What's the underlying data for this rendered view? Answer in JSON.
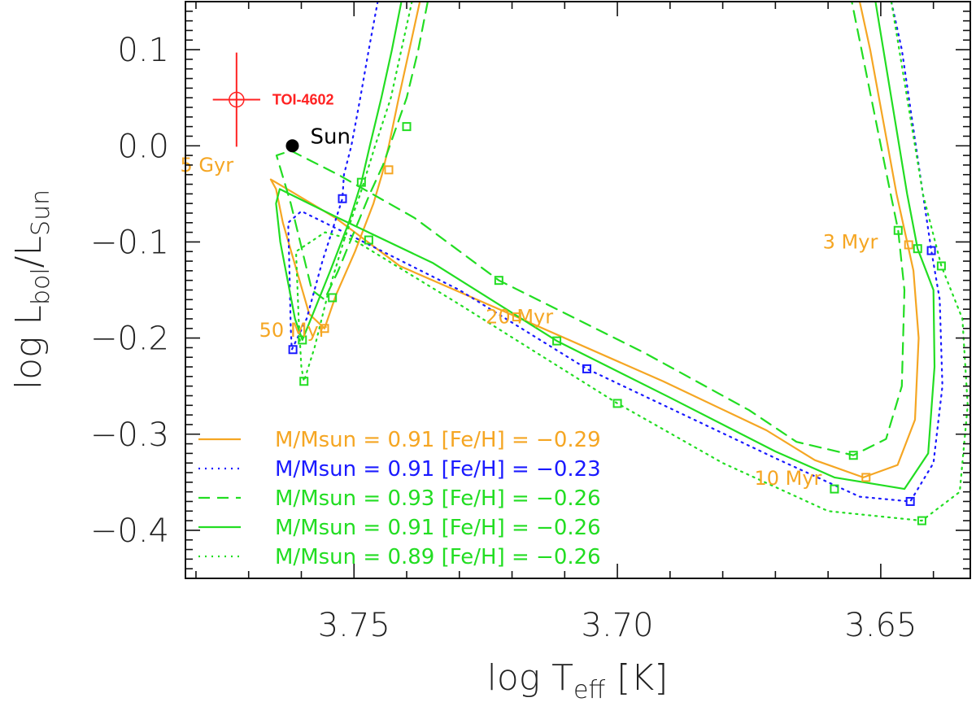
{
  "chart_data": {
    "type": "line",
    "title": "",
    "xlabel": {
      "prefix": "log T",
      "sub": "eff",
      "suffix": " [K]"
    },
    "ylabel": {
      "prefix": "log L",
      "sub1": "bol",
      "mid": "/L",
      "sub2": "Sun"
    },
    "xlim": [
      3.782,
      3.633
    ],
    "ylim": [
      -0.45,
      0.15
    ],
    "x_ticks": [
      {
        "value": 3.75,
        "label": "3.75"
      },
      {
        "value": 3.7,
        "label": "3.70"
      },
      {
        "value": 3.65,
        "label": "3.65"
      }
    ],
    "y_ticks": [
      {
        "value": 0.1,
        "label": "0.1"
      },
      {
        "value": 0.0,
        "label": "0.0"
      },
      {
        "value": -0.1,
        "label": "−0.1"
      },
      {
        "value": -0.2,
        "label": "−0.2"
      },
      {
        "value": -0.3,
        "label": "−0.3"
      },
      {
        "value": -0.4,
        "label": "−0.4"
      }
    ],
    "legend_placement": "bottom-left",
    "colors": {
      "orange": "#f5a623",
      "blue": "#1a1aff",
      "green": "#22dd22",
      "red": "#ff2222"
    },
    "series": [
      {
        "name": "M/Msun = 0.91 [Fe/H] = −0.29",
        "color": "#f5a623",
        "dash": "solid",
        "points": [
          [
            3.7375,
            0.15
          ],
          [
            3.7395,
            0.1
          ],
          [
            3.7415,
            0.05
          ],
          [
            3.7434,
            0.0
          ],
          [
            3.7447,
            -0.03
          ],
          [
            3.7463,
            -0.06
          ],
          [
            3.7498,
            -0.11
          ],
          [
            3.7534,
            -0.155
          ],
          [
            3.7556,
            -0.19
          ],
          [
            3.7585,
            -0.175
          ],
          [
            3.7635,
            -0.08
          ],
          [
            3.7648,
            -0.045
          ],
          [
            3.7658,
            -0.035
          ],
          [
            3.7636,
            -0.042
          ],
          [
            3.7535,
            -0.075
          ],
          [
            3.7413,
            -0.125
          ],
          [
            3.7191,
            -0.178
          ],
          [
            3.6913,
            -0.245
          ],
          [
            3.6717,
            -0.296
          ],
          [
            3.6625,
            -0.327
          ],
          [
            3.6533,
            -0.345
          ],
          [
            3.6468,
            -0.332
          ],
          [
            3.6435,
            -0.285
          ],
          [
            3.6428,
            -0.2
          ],
          [
            3.6438,
            -0.13
          ],
          [
            3.6452,
            -0.095
          ],
          [
            3.647,
            -0.05
          ],
          [
            3.652,
            0.1
          ],
          [
            3.654,
            0.15
          ]
        ],
        "markers": [
          [
            3.7434,
            -0.025
          ],
          [
            3.7556,
            -0.19
          ],
          [
            3.7191,
            -0.178
          ],
          [
            3.6528,
            -0.345
          ],
          [
            3.6447,
            -0.103
          ]
        ]
      },
      {
        "name": "M/Msun = 0.91 [Fe/H] = −0.23",
        "color": "#1a1aff",
        "dash": "dot",
        "points": [
          [
            3.7455,
            0.15
          ],
          [
            3.7472,
            0.1
          ],
          [
            3.7488,
            0.05
          ],
          [
            3.7505,
            0.0
          ],
          [
            3.7519,
            -0.03
          ],
          [
            3.7522,
            -0.055
          ],
          [
            3.756,
            -0.12
          ],
          [
            3.759,
            -0.18
          ],
          [
            3.7618,
            -0.212
          ],
          [
            3.762,
            -0.19
          ],
          [
            3.7623,
            -0.12
          ],
          [
            3.7625,
            -0.08
          ],
          [
            3.76,
            -0.068
          ],
          [
            3.75,
            -0.095
          ],
          [
            3.73,
            -0.15
          ],
          [
            3.7058,
            -0.232
          ],
          [
            3.67,
            -0.325
          ],
          [
            3.654,
            -0.365
          ],
          [
            3.6444,
            -0.37
          ],
          [
            3.64,
            -0.33
          ],
          [
            3.6383,
            -0.25
          ],
          [
            3.6388,
            -0.16
          ],
          [
            3.6404,
            -0.109
          ],
          [
            3.642,
            -0.05
          ],
          [
            3.646,
            0.1
          ],
          [
            3.648,
            0.15
          ]
        ],
        "markers": [
          [
            3.7522,
            -0.055
          ],
          [
            3.7616,
            -0.212
          ],
          [
            3.7058,
            -0.232
          ],
          [
            3.6444,
            -0.37
          ],
          [
            3.6404,
            -0.109
          ]
        ]
      },
      {
        "name": "M/Msun = 0.93 [Fe/H] = −0.26",
        "color": "#22dd22",
        "dash": "dash",
        "points": [
          [
            3.736,
            0.15
          ],
          [
            3.7378,
            0.1
          ],
          [
            3.74,
            0.05
          ],
          [
            3.7445,
            -0.02
          ],
          [
            3.747,
            -0.05
          ],
          [
            3.75,
            -0.09
          ],
          [
            3.753,
            -0.13
          ],
          [
            3.7556,
            -0.16
          ],
          [
            3.758,
            -0.15
          ],
          [
            3.762,
            -0.06
          ],
          [
            3.7647,
            -0.01
          ],
          [
            3.762,
            -0.005
          ],
          [
            3.753,
            -0.03
          ],
          [
            3.7385,
            -0.075
          ],
          [
            3.7225,
            -0.14
          ],
          [
            3.695,
            -0.215
          ],
          [
            3.675,
            -0.275
          ],
          [
            3.666,
            -0.308
          ],
          [
            3.6552,
            -0.322
          ],
          [
            3.649,
            -0.305
          ],
          [
            3.646,
            -0.25
          ],
          [
            3.6455,
            -0.15
          ],
          [
            3.6467,
            -0.088
          ],
          [
            3.6485,
            -0.04
          ],
          [
            3.6555,
            0.15
          ]
        ],
        "markers": [
          [
            3.74,
            0.02
          ],
          [
            3.7541,
            -0.158
          ],
          [
            3.7225,
            -0.14
          ],
          [
            3.6552,
            -0.322
          ],
          [
            3.6467,
            -0.088
          ]
        ]
      },
      {
        "name": "M/Msun = 0.91 [Fe/H] = −0.26",
        "color": "#22dd22",
        "dash": "solid",
        "points": [
          [
            3.741,
            0.15
          ],
          [
            3.7428,
            0.1
          ],
          [
            3.7448,
            0.05
          ],
          [
            3.747,
            0.0
          ],
          [
            3.7486,
            -0.038
          ],
          [
            3.751,
            -0.08
          ],
          [
            3.7545,
            -0.13
          ],
          [
            3.7578,
            -0.175
          ],
          [
            3.7598,
            -0.202
          ],
          [
            3.7612,
            -0.18
          ],
          [
            3.764,
            -0.1
          ],
          [
            3.7648,
            -0.06
          ],
          [
            3.7641,
            -0.045
          ],
          [
            3.753,
            -0.075
          ],
          [
            3.735,
            -0.122
          ],
          [
            3.7115,
            -0.203
          ],
          [
            3.69,
            -0.262
          ],
          [
            3.67,
            -0.318
          ],
          [
            3.6588,
            -0.345
          ],
          [
            3.6455,
            -0.357
          ],
          [
            3.641,
            -0.32
          ],
          [
            3.6398,
            -0.23
          ],
          [
            3.64,
            -0.15
          ],
          [
            3.643,
            -0.107
          ],
          [
            3.645,
            -0.05
          ],
          [
            3.651,
            0.15
          ]
        ],
        "markers": [
          [
            3.7486,
            -0.038
          ],
          [
            3.7598,
            -0.202
          ],
          [
            3.7115,
            -0.203
          ],
          [
            3.6588,
            -0.357
          ],
          [
            3.643,
            -0.107
          ]
        ]
      },
      {
        "name": "M/Msun = 0.89 [Fe/H] = −0.26",
        "color": "#22dd22",
        "dash": "dot",
        "points": [
          [
            3.739,
            0.15
          ],
          [
            3.741,
            0.1
          ],
          [
            3.743,
            0.05
          ],
          [
            3.746,
            0.0
          ],
          [
            3.7488,
            -0.05
          ],
          [
            3.752,
            -0.1
          ],
          [
            3.755,
            -0.155
          ],
          [
            3.7575,
            -0.21
          ],
          [
            3.7595,
            -0.245
          ],
          [
            3.76,
            -0.23
          ],
          [
            3.7605,
            -0.18
          ],
          [
            3.761,
            -0.11
          ],
          [
            3.7555,
            -0.09
          ],
          [
            3.75,
            -0.098
          ],
          [
            3.73,
            -0.165
          ],
          [
            3.7,
            -0.268
          ],
          [
            3.68,
            -0.33
          ],
          [
            3.66,
            -0.38
          ],
          [
            3.6422,
            -0.39
          ],
          [
            3.635,
            -0.36
          ],
          [
            3.6335,
            -0.27
          ],
          [
            3.6345,
            -0.18
          ],
          [
            3.6385,
            -0.125
          ],
          [
            3.642,
            -0.05
          ],
          [
            3.648,
            0.15
          ]
        ],
        "markers": [
          [
            3.7472,
            -0.098
          ],
          [
            3.7595,
            -0.245
          ],
          [
            3.7,
            -0.268
          ],
          [
            3.6422,
            -0.39
          ],
          [
            3.6385,
            -0.125
          ]
        ]
      }
    ],
    "points": [
      {
        "name": "TOI-4602",
        "x": 3.7723,
        "y": 0.048,
        "xerr": 0.0045,
        "yerr": 0.049,
        "color": "#ff2222"
      },
      {
        "name": "Sun",
        "x": 3.7617,
        "y": 0.0,
        "color": "#000000"
      }
    ],
    "annotations": [
      {
        "text": "5 Gyr",
        "x": 3.783,
        "y": -0.02
      },
      {
        "text": "50 Myr",
        "x": 3.768,
        "y": -0.192
      },
      {
        "text": "20 Myr",
        "x": 3.725,
        "y": -0.178
      },
      {
        "text": "10 Myr",
        "x": 3.674,
        "y": -0.346
      },
      {
        "text": "3 Myr",
        "x": 3.661,
        "y": -0.1
      }
    ]
  }
}
